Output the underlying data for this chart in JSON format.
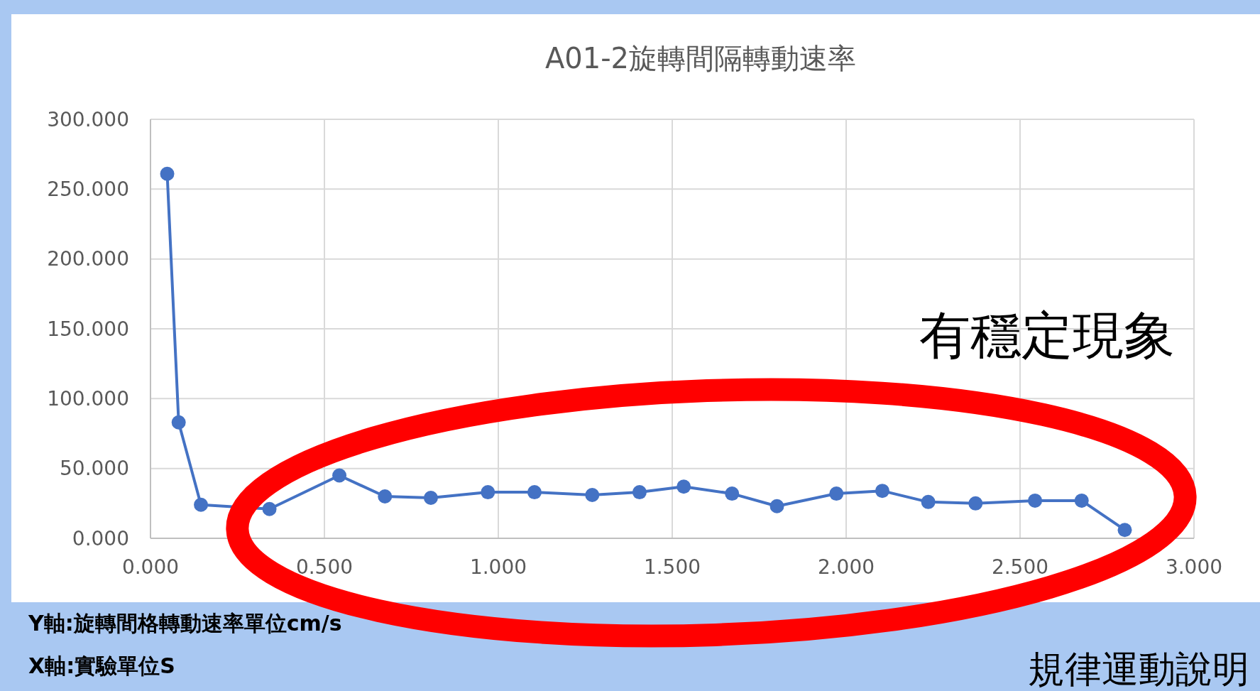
{
  "chart_data": {
    "type": "line",
    "title": "A01-2旋轉間隔轉動速率",
    "xlabel": "X軸:實驗單位S",
    "ylabel": "Y軸:旋轉間格轉動速率單位cm/s",
    "annotations": [
      "有穩定現象",
      "規律運動說明"
    ],
    "x": [
      0.048,
      0.081,
      0.145,
      0.342,
      0.543,
      0.674,
      0.806,
      0.97,
      1.104,
      1.27,
      1.406,
      1.533,
      1.672,
      1.801,
      1.972,
      2.104,
      2.236,
      2.372,
      2.543,
      2.677,
      2.801
    ],
    "series": [
      {
        "color": "#4472c4",
        "values": [
          261,
          83,
          24,
          21,
          45,
          30,
          29,
          33,
          33,
          31,
          33,
          37,
          32,
          23,
          32,
          34,
          26,
          25,
          27,
          27,
          6
        ]
      }
    ],
    "xlim": [
      0,
      3
    ],
    "xticks": [
      {
        "value": 0,
        "label": "0.000"
      },
      {
        "value": 0.5,
        "label": "0.500"
      },
      {
        "value": 1,
        "label": "1.000"
      },
      {
        "value": 1.5,
        "label": "1.500"
      },
      {
        "value": 2,
        "label": "2.000"
      },
      {
        "value": 2.5,
        "label": "2.500"
      },
      {
        "value": 3,
        "label": "3.000"
      }
    ],
    "ylim": [
      0,
      300
    ],
    "yticks": [
      {
        "value": 0,
        "label": "0.000"
      },
      {
        "value": 50,
        "label": "50.000"
      },
      {
        "value": 100,
        "label": "100.000"
      },
      {
        "value": 150,
        "label": "150.000"
      },
      {
        "value": 200,
        "label": "200.000"
      },
      {
        "value": 250,
        "label": "250.000"
      },
      {
        "value": 300,
        "label": "300.000"
      }
    ],
    "grid": true,
    "marker": "circle",
    "line_style": "solid"
  }
}
